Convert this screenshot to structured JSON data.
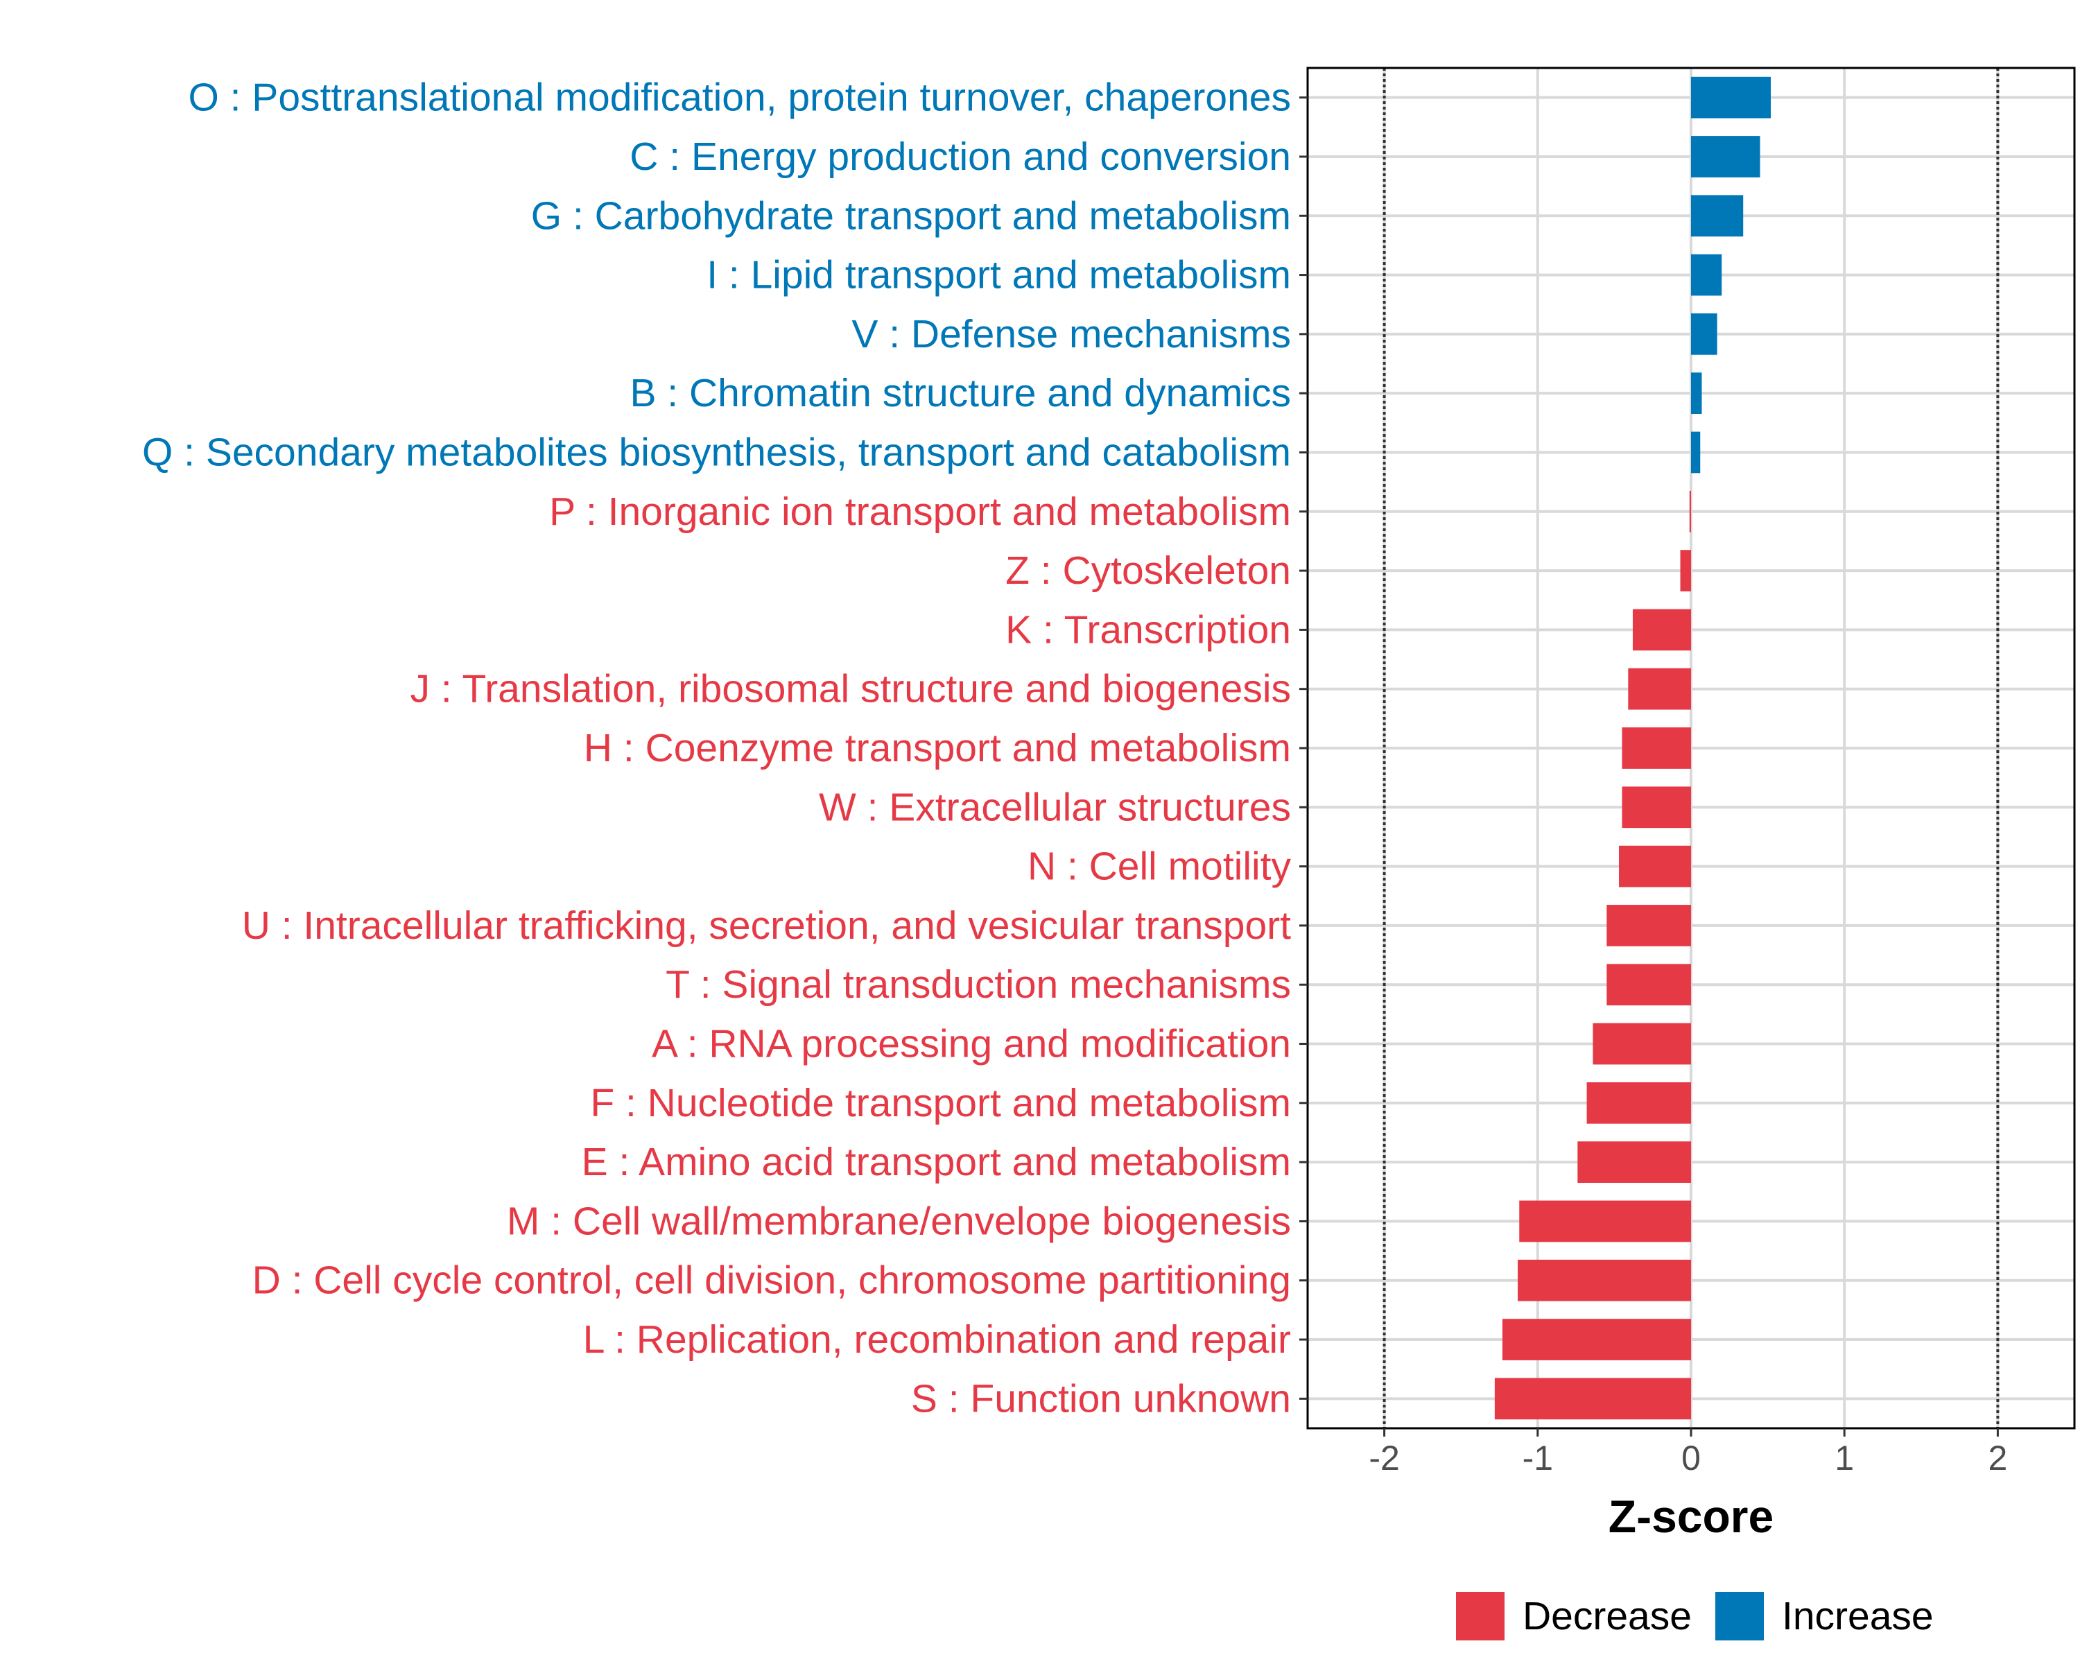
{
  "chart_data": {
    "type": "bar",
    "orientation": "horizontal",
    "xlabel": "Z-score",
    "xlim": [
      -2.5,
      2.5
    ],
    "xticks": [
      -2,
      -1,
      0,
      1,
      2
    ],
    "xtick_labels": [
      "-2",
      "-1",
      "0",
      "1",
      "2"
    ],
    "reference_lines": [
      -2,
      2
    ],
    "grid": true,
    "categories": [
      "O : Posttranslational modification, protein turnover, chaperones",
      "C : Energy production and conversion",
      "G : Carbohydrate transport and metabolism",
      "I : Lipid transport and metabolism",
      "V : Defense mechanisms",
      "B : Chromatin structure and dynamics",
      "Q : Secondary metabolites biosynthesis, transport and catabolism",
      "P : Inorganic ion transport and metabolism",
      "Z : Cytoskeleton",
      "K : Transcription",
      "J : Translation, ribosomal structure and biogenesis",
      "H : Coenzyme transport and metabolism",
      "W : Extracellular structures",
      "N : Cell motility",
      "U : Intracellular trafficking, secretion, and vesicular transport",
      "T : Signal transduction mechanisms",
      "A : RNA processing and modification",
      "F : Nucleotide transport and metabolism",
      "E : Amino acid transport and metabolism",
      "M : Cell wall/membrane/envelope biogenesis",
      "D : Cell cycle control, cell division, chromosome partitioning",
      "L : Replication, recombination and repair",
      "S : Function unknown"
    ],
    "values": [
      0.52,
      0.45,
      0.34,
      0.2,
      0.17,
      0.07,
      0.06,
      -0.01,
      -0.07,
      -0.38,
      -0.41,
      -0.45,
      -0.45,
      -0.47,
      -0.55,
      -0.55,
      -0.64,
      -0.68,
      -0.74,
      -1.12,
      -1.13,
      -1.23,
      -1.28
    ],
    "groups": [
      "Increase",
      "Increase",
      "Increase",
      "Increase",
      "Increase",
      "Increase",
      "Increase",
      "Decrease",
      "Decrease",
      "Decrease",
      "Decrease",
      "Decrease",
      "Decrease",
      "Decrease",
      "Decrease",
      "Decrease",
      "Decrease",
      "Decrease",
      "Decrease",
      "Decrease",
      "Decrease",
      "Decrease",
      "Decrease"
    ],
    "legend": {
      "position": "bottom",
      "entries": [
        {
          "label": "Decrease",
          "color": "#E63946"
        },
        {
          "label": "Increase",
          "color": "#0077B6"
        }
      ]
    }
  }
}
